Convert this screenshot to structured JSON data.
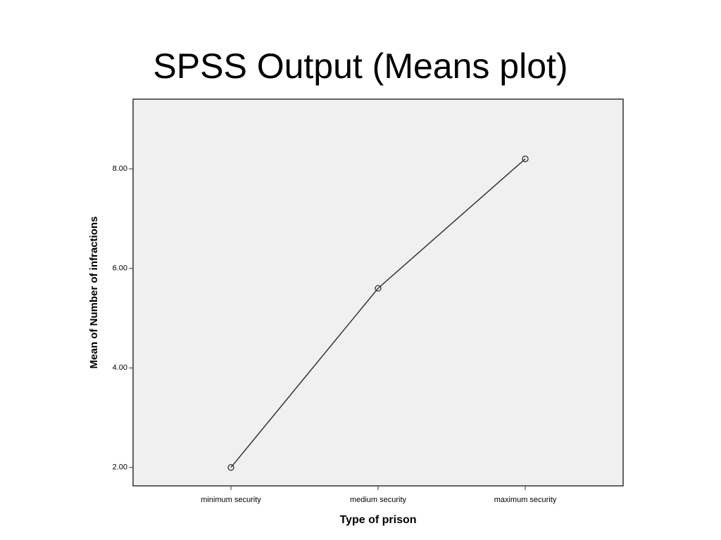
{
  "chart_data": {
    "type": "line",
    "title": "SPSS Output (Means plot)",
    "x_label": "Type of prison",
    "y_label": "Mean of Number of infractions",
    "categories": [
      "minimum security",
      "medium security",
      "maximum security"
    ],
    "values": [
      2.0,
      5.6,
      8.2
    ],
    "color": "#333333",
    "ylim": [
      1.63,
      9.4
    ],
    "yticks": [
      {
        "value": 2,
        "label": "2.00"
      },
      {
        "value": 4,
        "label": "4.00"
      },
      {
        "value": 6,
        "label": "6.00"
      },
      {
        "value": 8,
        "label": "8.00"
      }
    ],
    "grid": false
  }
}
